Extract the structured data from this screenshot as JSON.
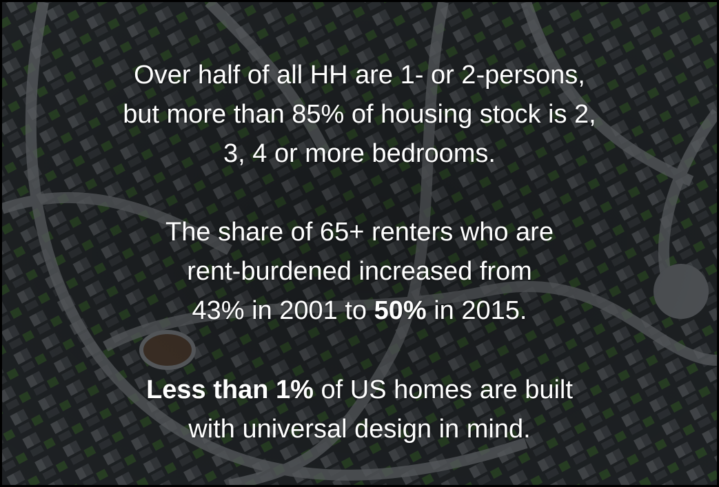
{
  "slide": {
    "paragraphs": [
      {
        "lines": [
          [
            {
              "text": "Over half of all HH are 1- or 2-persons,"
            }
          ],
          [
            {
              "text": "but more than 85% of housing stock is 2,"
            }
          ],
          [
            {
              "text": "3, 4 or more bedrooms."
            }
          ]
        ]
      },
      {
        "lines": [
          [
            {
              "text": "The share of 65+ renters who are"
            }
          ],
          [
            {
              "text": "rent-burdened increased from"
            }
          ],
          [
            {
              "text": "43% in 2001 to "
            },
            {
              "text": "50%",
              "bold": true
            },
            {
              "text": " in 2015."
            }
          ]
        ]
      },
      {
        "lines": [
          [
            {
              "text": "Less than 1%",
              "bold": true
            },
            {
              "text": " of US homes are built"
            }
          ],
          [
            {
              "text": "with universal design in mind."
            }
          ]
        ]
      }
    ]
  }
}
